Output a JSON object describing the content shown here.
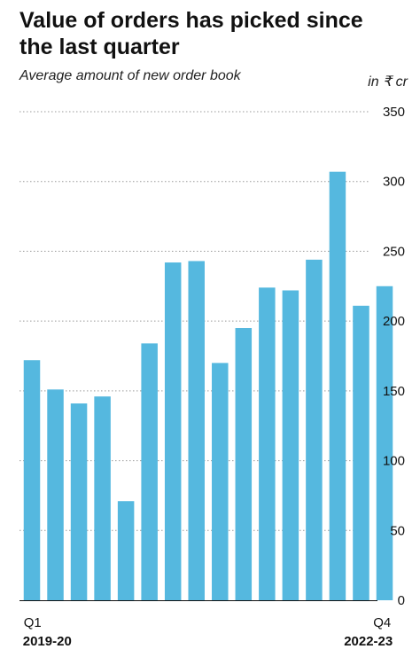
{
  "chart_data": {
    "type": "bar",
    "title": "Value of orders has picked since the last quarter",
    "subtitle": "Average amount of new order book",
    "unit_label": "in ₹ cr",
    "categories": [
      "Q1",
      "",
      "",
      "",
      "",
      "",
      "",
      "",
      "",
      "",
      "",
      "",
      "",
      "",
      "",
      "Q4"
    ],
    "period_start_label": "2019-20",
    "period_end_label": "2022-23",
    "values": [
      172,
      151,
      141,
      146,
      71,
      184,
      242,
      243,
      170,
      195,
      224,
      222,
      244,
      307,
      211,
      225
    ],
    "ylim": [
      0,
      350
    ],
    "yticks": [
      0,
      50,
      100,
      150,
      200,
      250,
      300,
      350
    ],
    "grid": true,
    "legend": "none",
    "bar_color": "#55b8df"
  }
}
